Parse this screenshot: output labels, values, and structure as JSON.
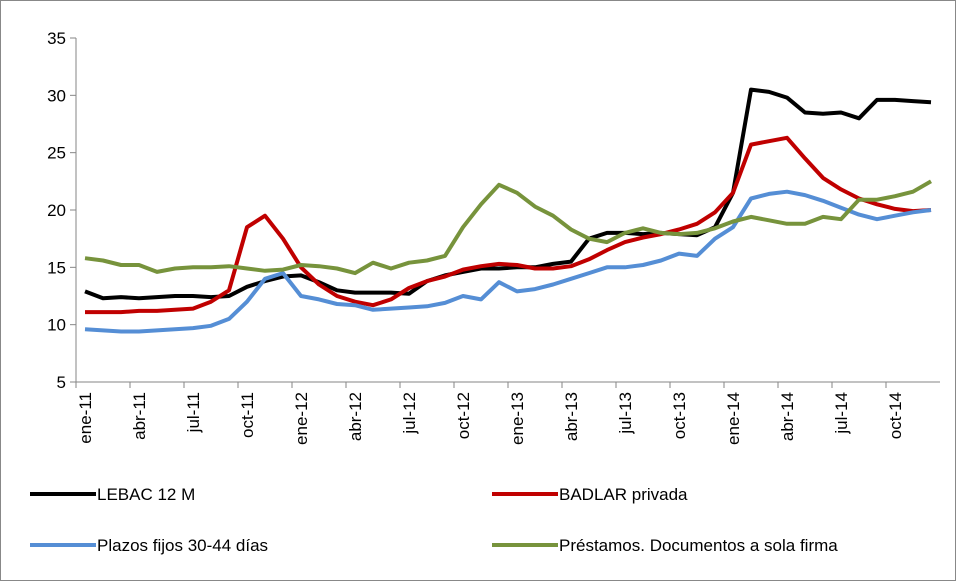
{
  "chart_data": {
    "type": "line",
    "categories": [
      "ene-11",
      null,
      null,
      "abr-11",
      null,
      null,
      "jul-11",
      null,
      null,
      "oct-11",
      null,
      null,
      "ene-12",
      null,
      null,
      "abr-12",
      null,
      null,
      "jul-12",
      null,
      null,
      "oct-12",
      null,
      null,
      "ene-13",
      null,
      null,
      "abr-13",
      null,
      null,
      "jul-13",
      null,
      null,
      "oct-13",
      null,
      null,
      "ene-14",
      null,
      null,
      "abr-14",
      null,
      null,
      "jul-14",
      null,
      null,
      "oct-14",
      null,
      null
    ],
    "ylim": [
      5,
      35
    ],
    "yticks": [
      5,
      10,
      15,
      20,
      25,
      30,
      35
    ],
    "series": [
      {
        "name": "LEBAC 12 M",
        "color": "#000000",
        "values": [
          12.9,
          12.3,
          12.4,
          12.3,
          12.4,
          12.5,
          12.5,
          12.4,
          12.5,
          13.3,
          13.8,
          14.2,
          14.3,
          13.7,
          13.0,
          12.8,
          12.8,
          12.8,
          12.7,
          13.8,
          14.3,
          14.6,
          14.9,
          14.9,
          15.0,
          15.0,
          15.3,
          15.5,
          17.5,
          18.0,
          18.0,
          17.9,
          18.0,
          17.9,
          17.8,
          18.5,
          21.5,
          30.5,
          30.3,
          29.8,
          28.5,
          28.4,
          28.5,
          28.0,
          29.6,
          29.6,
          29.5,
          29.4
        ]
      },
      {
        "name": "BADLAR privada",
        "color": "#c00000",
        "values": [
          11.1,
          11.1,
          11.1,
          11.2,
          11.2,
          11.3,
          11.4,
          12.0,
          13.0,
          18.5,
          19.5,
          17.5,
          15.0,
          13.5,
          12.5,
          12.0,
          11.7,
          12.2,
          13.2,
          13.8,
          14.2,
          14.8,
          15.1,
          15.3,
          15.2,
          14.9,
          14.9,
          15.1,
          15.7,
          16.5,
          17.2,
          17.6,
          17.9,
          18.3,
          18.8,
          19.8,
          21.5,
          25.7,
          26.0,
          26.3,
          24.5,
          22.8,
          21.8,
          21.0,
          20.5,
          20.1,
          19.9,
          20.0
        ]
      },
      {
        "name": "Plazos fijos 30-44 días",
        "color": "#558ed5",
        "values": [
          9.6,
          9.5,
          9.4,
          9.4,
          9.5,
          9.6,
          9.7,
          9.9,
          10.5,
          12.0,
          14.0,
          14.5,
          12.5,
          12.2,
          11.8,
          11.7,
          11.3,
          11.4,
          11.5,
          11.6,
          11.9,
          12.5,
          12.2,
          13.7,
          12.9,
          13.1,
          13.5,
          14.0,
          14.5,
          15.0,
          15.0,
          15.2,
          15.6,
          16.2,
          16.0,
          17.5,
          18.5,
          21.0,
          21.4,
          21.6,
          21.3,
          20.8,
          20.2,
          19.6,
          19.2,
          19.5,
          19.8,
          20.0
        ]
      },
      {
        "name": "Préstamos. Documentos a sola firma",
        "color": "#77933c",
        "values": [
          15.8,
          15.6,
          15.2,
          15.2,
          14.6,
          14.9,
          15.0,
          15.0,
          15.1,
          14.9,
          14.7,
          14.8,
          15.2,
          15.1,
          14.9,
          14.5,
          15.4,
          14.9,
          15.4,
          15.6,
          16.0,
          18.5,
          20.5,
          22.2,
          21.5,
          20.3,
          19.5,
          18.3,
          17.5,
          17.2,
          18.0,
          18.4,
          18.0,
          17.9,
          18.0,
          18.4,
          19.0,
          19.4,
          19.1,
          18.8,
          18.8,
          19.4,
          19.2,
          20.9,
          20.9,
          21.2,
          21.6,
          22.5
        ]
      }
    ]
  }
}
